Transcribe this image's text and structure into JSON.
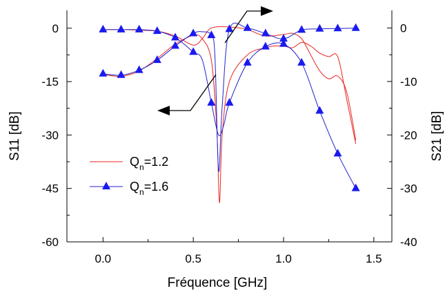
{
  "chart_data": {
    "type": "line",
    "title": "",
    "xlabel": "Fréquence [GHz]",
    "ylabel": "S11 [dB]",
    "ylabel_right": "S21 [dB]",
    "xlim": [
      -0.2,
      1.6
    ],
    "ylim": [
      -60,
      5
    ],
    "ylim_right": [
      -40,
      3.3
    ],
    "x_ticks": [
      "0.0",
      "0.5",
      "1.0",
      "1.5"
    ],
    "y_ticks": [
      "-60",
      "-45",
      "-30",
      "-15",
      "0"
    ],
    "y_ticks_right": [
      "-40",
      "-30",
      "-20",
      "-10",
      "0"
    ],
    "grid": false,
    "legend_position": "lower-left",
    "legend": [
      {
        "label_main": "Q",
        "label_sub": "n",
        "label_rest": "=1.2",
        "color": "#e8251f",
        "marker": "none"
      },
      {
        "label_main": "Q",
        "label_sub": "n",
        "label_rest": "=1.6",
        "color": "#2222cc",
        "marker": "triangle"
      }
    ],
    "series": [
      {
        "legend_index": 0,
        "axis": "left",
        "quantity": "S11",
        "color": "#e8251f",
        "marker": "none",
        "x": [
          0.0,
          0.1,
          0.2,
          0.3,
          0.4,
          0.5,
          0.55,
          0.6,
          0.63,
          0.645,
          0.66,
          0.7,
          0.8,
          0.9,
          0.95,
          1.0,
          1.05,
          1.1,
          1.15,
          1.2,
          1.25,
          1.3,
          1.35,
          1.4
        ],
        "y": [
          -13,
          -13.5,
          -12,
          -8.5,
          -4.5,
          -2.0,
          -3.0,
          -9.0,
          -28.0,
          -49.0,
          -30.0,
          -15.0,
          -7.5,
          -5.5,
          -5.0,
          -5.0,
          -5.5,
          -4.0,
          -5.0,
          -7.0,
          -8.0,
          -8.0,
          -20.0,
          -32.5
        ]
      },
      {
        "legend_index": 0,
        "axis": "right",
        "quantity": "S21",
        "color": "#e8251f",
        "marker": "none",
        "x": [
          0.0,
          0.1,
          0.2,
          0.3,
          0.4,
          0.5,
          0.55,
          0.6,
          0.7,
          0.8,
          0.9,
          1.0,
          1.05,
          1.1,
          1.15,
          1.2,
          1.25,
          1.3,
          1.35,
          1.4
        ],
        "y": [
          -0.3,
          -0.3,
          -0.4,
          -0.6,
          -1.5,
          -3.2,
          -2.0,
          0.0,
          0.2,
          -0.3,
          -1.5,
          -1.2,
          -1.0,
          -2.0,
          -5.0,
          -8.0,
          -9.5,
          -9.0,
          -12.0,
          -21.0
        ]
      },
      {
        "legend_index": 1,
        "axis": "left",
        "quantity": "S11",
        "color": "#2222cc",
        "marker": "triangle",
        "x": [
          0.0,
          0.1,
          0.2,
          0.3,
          0.4,
          0.5,
          0.55,
          0.6,
          0.62,
          0.64,
          0.66,
          0.7,
          0.8,
          0.9,
          1.0,
          1.1,
          1.2,
          1.3,
          1.4
        ],
        "y": [
          -12.8,
          -13.2,
          -11.8,
          -9.0,
          -5.0,
          -1.5,
          -1.0,
          -2.0,
          -8.0,
          -40.0,
          -22.0,
          -0.3,
          0.0,
          -1.5,
          -3.0,
          -0.5,
          -0.2,
          -0.1,
          0.0
        ],
        "markers_x": [
          0.0,
          0.1,
          0.2,
          0.3,
          0.4,
          0.5,
          0.6,
          0.7,
          0.8,
          0.9,
          1.0,
          1.1,
          1.2,
          1.3,
          1.4
        ]
      },
      {
        "legend_index": 1,
        "axis": "right",
        "quantity": "S21",
        "color": "#2222cc",
        "marker": "triangle",
        "x": [
          0.0,
          0.1,
          0.2,
          0.3,
          0.4,
          0.5,
          0.55,
          0.6,
          0.64,
          0.67,
          0.7,
          0.8,
          0.9,
          1.0,
          1.1,
          1.2,
          1.3,
          1.4
        ],
        "y": [
          -0.3,
          -0.3,
          -0.3,
          -0.6,
          -1.8,
          -4.5,
          -6.0,
          -14.0,
          -20.0,
          -18.0,
          -14.0,
          -6.5,
          -3.5,
          -3.0,
          -6.5,
          -15.5,
          -23.5,
          -30.0
        ],
        "markers_x": [
          0.0,
          0.1,
          0.2,
          0.3,
          0.4,
          0.5,
          0.6,
          0.7,
          0.8,
          0.9,
          1.0,
          1.1,
          1.2,
          1.3,
          1.4
        ]
      }
    ],
    "annotations": [
      {
        "type": "arrow",
        "points_to": "left-axis",
        "attached_to": "S11"
      },
      {
        "type": "arrow",
        "points_to": "right-axis",
        "attached_to": "S21"
      }
    ]
  }
}
